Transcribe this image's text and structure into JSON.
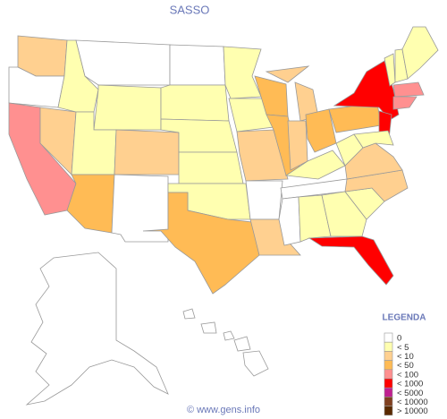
{
  "header": {
    "title": "SASSO"
  },
  "legend": {
    "title": "LEGENDA",
    "items": [
      {
        "label": "0",
        "color": "#ffffff"
      },
      {
        "label": "< 5",
        "color": "#ffffb0"
      },
      {
        "label": "< 10",
        "color": "#ffd090"
      },
      {
        "label": "< 50",
        "color": "#ffbb55"
      },
      {
        "label": "< 100",
        "color": "#ff9090"
      },
      {
        "label": "< 1000",
        "color": "#ff0000"
      },
      {
        "label": "< 5000",
        "color": "#c02090"
      },
      {
        "label": "< 10000",
        "color": "#804020"
      },
      {
        "label": "> 10000",
        "color": "#5a2a00"
      }
    ]
  },
  "footer": {
    "text": "© www.gens.info"
  }
}
